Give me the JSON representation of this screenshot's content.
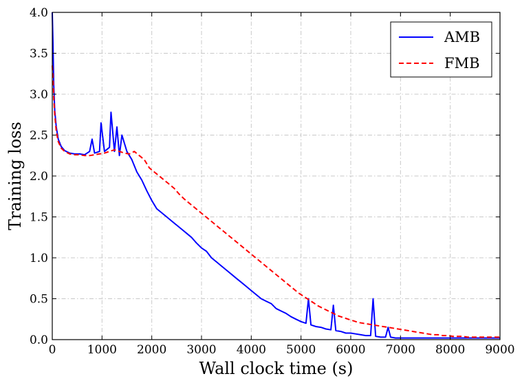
{
  "chart_data": {
    "type": "line",
    "xlabel": "Wall clock time (s)",
    "ylabel": "Training loss",
    "xlim": [
      0,
      9000
    ],
    "ylim": [
      0.0,
      4.0
    ],
    "xticks": [
      0,
      1000,
      2000,
      3000,
      4000,
      5000,
      6000,
      7000,
      8000,
      9000
    ],
    "xtick_labels": [
      "0",
      "1000",
      "2000",
      "3000",
      "4000",
      "5000",
      "6000",
      "7000",
      "8000",
      "9000"
    ],
    "yticks": [
      0.0,
      0.5,
      1.0,
      1.5,
      2.0,
      2.5,
      3.0,
      3.5,
      4.0
    ],
    "ytick_labels": [
      "0.0",
      "0.5",
      "1.0",
      "1.5",
      "2.0",
      "2.5",
      "3.0",
      "3.5",
      "4.0"
    ],
    "grid": true,
    "legend_position": "top-right",
    "series": [
      {
        "name": "AMB",
        "color": "#0000ff",
        "style": "solid",
        "x": [
          0,
          15,
          30,
          50,
          80,
          120,
          180,
          250,
          350,
          450,
          550,
          650,
          750,
          800,
          850,
          950,
          980,
          1050,
          1150,
          1180,
          1250,
          1300,
          1350,
          1400,
          1500,
          1600,
          1700,
          1800,
          1900,
          2000,
          2100,
          2200,
          2300,
          2400,
          2500,
          2600,
          2700,
          2800,
          2900,
          3000,
          3100,
          3200,
          3300,
          3400,
          3500,
          3600,
          3700,
          3800,
          3900,
          4000,
          4100,
          4200,
          4300,
          4400,
          4500,
          4600,
          4700,
          4800,
          4900,
          5000,
          5100,
          5150,
          5200,
          5300,
          5400,
          5500,
          5600,
          5650,
          5700,
          5800,
          5900,
          6000,
          6100,
          6200,
          6300,
          6400,
          6450,
          6500,
          6600,
          6700,
          6750,
          6800,
          6900,
          7000,
          7100,
          7200,
          7300,
          7400,
          7500,
          7600,
          7700,
          7800,
          7900,
          8000,
          8100,
          8200,
          8300,
          8400,
          8500,
          8600,
          8700,
          8800,
          8900,
          9000
        ],
        "y": [
          4.0,
          3.6,
          3.1,
          2.8,
          2.6,
          2.45,
          2.36,
          2.31,
          2.28,
          2.27,
          2.27,
          2.26,
          2.3,
          2.45,
          2.28,
          2.3,
          2.65,
          2.3,
          2.35,
          2.78,
          2.3,
          2.6,
          2.25,
          2.5,
          2.3,
          2.2,
          2.05,
          1.95,
          1.82,
          1.7,
          1.6,
          1.55,
          1.5,
          1.45,
          1.4,
          1.35,
          1.3,
          1.25,
          1.18,
          1.12,
          1.08,
          1.0,
          0.95,
          0.9,
          0.85,
          0.8,
          0.75,
          0.7,
          0.65,
          0.6,
          0.55,
          0.5,
          0.47,
          0.44,
          0.38,
          0.35,
          0.32,
          0.28,
          0.25,
          0.22,
          0.2,
          0.5,
          0.18,
          0.16,
          0.15,
          0.13,
          0.12,
          0.42,
          0.11,
          0.1,
          0.08,
          0.08,
          0.07,
          0.06,
          0.05,
          0.05,
          0.5,
          0.04,
          0.03,
          0.03,
          0.15,
          0.03,
          0.02,
          0.02,
          0.02,
          0.02,
          0.02,
          0.02,
          0.02,
          0.02,
          0.02,
          0.02,
          0.02,
          0.02,
          0.02,
          0.02,
          0.02,
          0.02,
          0.02,
          0.02,
          0.02,
          0.02,
          0.02,
          0.02
        ]
      },
      {
        "name": "FMB",
        "color": "#ff0000",
        "style": "dashed",
        "x": [
          0,
          15,
          30,
          50,
          80,
          120,
          180,
          250,
          350,
          450,
          550,
          650,
          750,
          850,
          950,
          1050,
          1150,
          1250,
          1350,
          1450,
          1550,
          1650,
          1750,
          1850,
          1950,
          2050,
          2150,
          2250,
          2350,
          2450,
          2550,
          2650,
          2750,
          2850,
          2950,
          3050,
          3150,
          3250,
          3350,
          3450,
          3550,
          3650,
          3750,
          3850,
          3950,
          4050,
          4150,
          4250,
          4350,
          4450,
          4550,
          4650,
          4750,
          4850,
          4950,
          5050,
          5150,
          5250,
          5350,
          5450,
          5550,
          5650,
          5750,
          5850,
          5950,
          6050,
          6150,
          6250,
          6350,
          6450,
          6550,
          6650,
          6750,
          6850,
          6950,
          7050,
          7150,
          7250,
          7350,
          7450,
          7550,
          7650,
          7750,
          7850,
          7950,
          8050,
          8150,
          8250,
          8350,
          8450,
          8550,
          8650,
          8750,
          8850,
          8950,
          9000
        ],
        "y": [
          3.35,
          3.2,
          2.95,
          2.75,
          2.55,
          2.42,
          2.34,
          2.3,
          2.27,
          2.26,
          2.26,
          2.25,
          2.25,
          2.26,
          2.27,
          2.28,
          2.3,
          2.32,
          2.3,
          2.28,
          2.27,
          2.3,
          2.25,
          2.2,
          2.1,
          2.05,
          2.0,
          1.95,
          1.9,
          1.85,
          1.78,
          1.72,
          1.67,
          1.62,
          1.57,
          1.52,
          1.47,
          1.42,
          1.37,
          1.32,
          1.27,
          1.22,
          1.17,
          1.12,
          1.07,
          1.02,
          0.97,
          0.92,
          0.87,
          0.82,
          0.77,
          0.72,
          0.67,
          0.62,
          0.57,
          0.53,
          0.49,
          0.45,
          0.41,
          0.38,
          0.35,
          0.32,
          0.29,
          0.27,
          0.25,
          0.23,
          0.21,
          0.2,
          0.19,
          0.18,
          0.17,
          0.16,
          0.15,
          0.14,
          0.13,
          0.12,
          0.11,
          0.1,
          0.09,
          0.08,
          0.07,
          0.06,
          0.06,
          0.05,
          0.05,
          0.04,
          0.04,
          0.04,
          0.03,
          0.03,
          0.03,
          0.03,
          0.03,
          0.03,
          0.03,
          0.03
        ]
      }
    ]
  }
}
